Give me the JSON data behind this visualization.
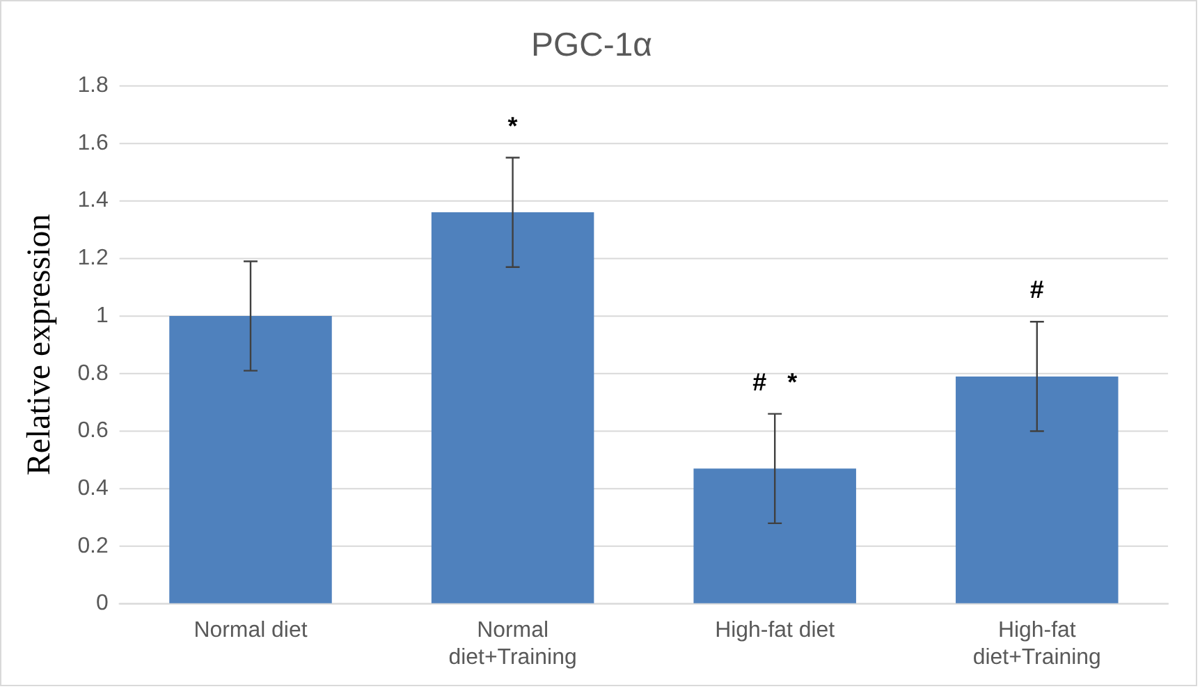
{
  "chart_data": {
    "type": "bar",
    "title": "PGC-1α",
    "ylabel": "Relative expression",
    "categories": [
      "Normal diet",
      "Normal diet+Training",
      "High-fat diet",
      "High-fat diet+Training"
    ],
    "values": [
      1.0,
      1.36,
      0.47,
      0.79
    ],
    "errors": [
      0.19,
      0.19,
      0.19,
      0.19
    ],
    "color": "#4f81bd",
    "ylim": [
      0,
      1.8
    ],
    "yticks": [
      0,
      0.2,
      0.4,
      0.6,
      0.8,
      1,
      1.2,
      1.4,
      1.6,
      1.8
    ],
    "grid": "y",
    "legend": false,
    "annotations": [
      {
        "text": "*",
        "x": "Normal diet+Training",
        "y": 1.55
      },
      {
        "text": "#   *",
        "x": "High-fat diet",
        "y": 0.66
      },
      {
        "text": "#",
        "x": "High-fat diet+Training",
        "y": 0.98
      }
    ]
  }
}
